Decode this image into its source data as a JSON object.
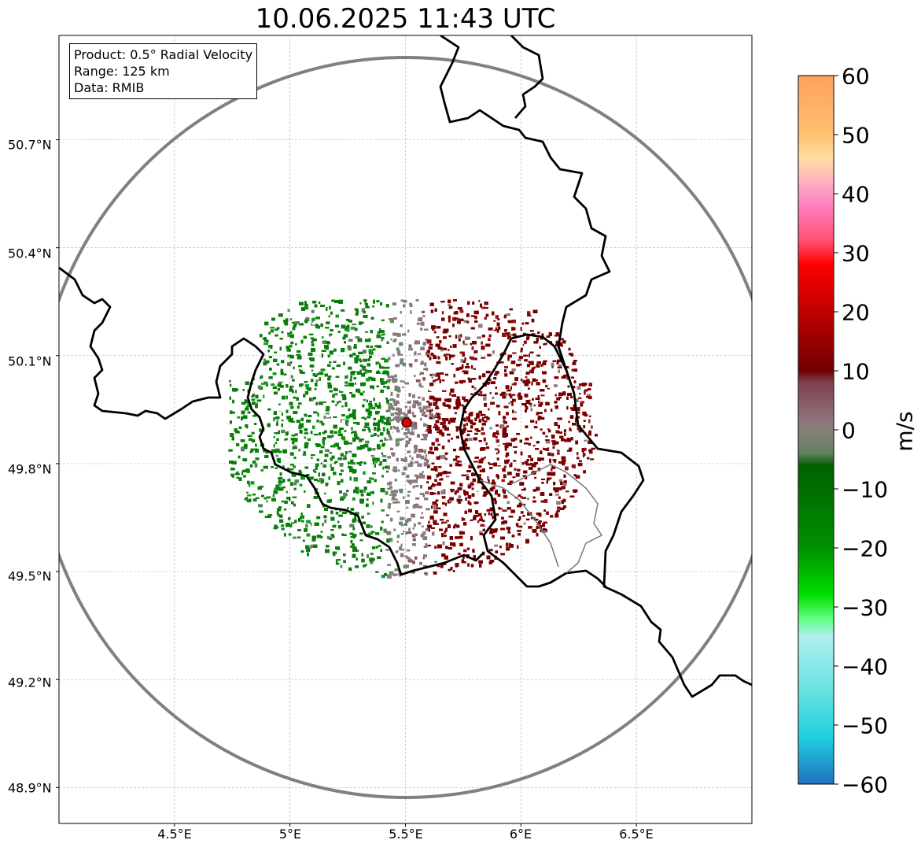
{
  "title": "10.06.2025 11:43 UTC",
  "info": {
    "product": "Product: 0.5° Radial Velocity",
    "range": "Range: 125 km",
    "data": "Data: RMIB"
  },
  "lat_labels": [
    "50.7°N",
    "50.4°N",
    "50.1°N",
    "49.8°N",
    "49.5°N",
    "49.2°N",
    "48.9°N"
  ],
  "lon_labels": [
    "4.5°E",
    "5°E",
    "5.5°E",
    "6°E",
    "6.5°E"
  ],
  "map_extent": {
    "lon": [
      4.0,
      7.0
    ],
    "lat": [
      48.8,
      50.99
    ]
  },
  "radar_site": {
    "lon": 5.505,
    "lat": 49.914
  },
  "colorbar": {
    "unit": "m/s",
    "range": [
      -60,
      60
    ],
    "ticks": [
      "60",
      "50",
      "40",
      "30",
      "20",
      "10",
      "0",
      "−10",
      "−20",
      "−30",
      "−40",
      "−50",
      "−60"
    ],
    "stops": [
      {
        "v": 60,
        "c": "#ffa060"
      },
      {
        "v": 50,
        "c": "#ffc070"
      },
      {
        "v": 46,
        "c": "#ffe0a0"
      },
      {
        "v": 42,
        "c": "#ffb0c0"
      },
      {
        "v": 38,
        "c": "#ff80c0"
      },
      {
        "v": 32,
        "c": "#ff5070"
      },
      {
        "v": 28,
        "c": "#ff0000"
      },
      {
        "v": 20,
        "c": "#c00000"
      },
      {
        "v": 10,
        "c": "#700000"
      },
      {
        "v": 8,
        "c": "#804050"
      },
      {
        "v": 2,
        "c": "#907078"
      },
      {
        "v": 0,
        "c": "#888078"
      },
      {
        "v": -4,
        "c": "#608060"
      },
      {
        "v": -6,
        "c": "#006000"
      },
      {
        "v": -20,
        "c": "#009000"
      },
      {
        "v": -28,
        "c": "#00e000"
      },
      {
        "v": -32,
        "c": "#60ff80"
      },
      {
        "v": -35,
        "c": "#b0f0f0"
      },
      {
        "v": -45,
        "c": "#60e0e0"
      },
      {
        "v": -52,
        "c": "#20d0e0"
      },
      {
        "v": -60,
        "c": "#2070c0"
      }
    ]
  },
  "colors": {
    "outbound": "#7a0000",
    "inbound": "#0a7d0a",
    "near_zero": "#8a7a80",
    "range_ring": "#808080",
    "border": "#000000"
  }
}
